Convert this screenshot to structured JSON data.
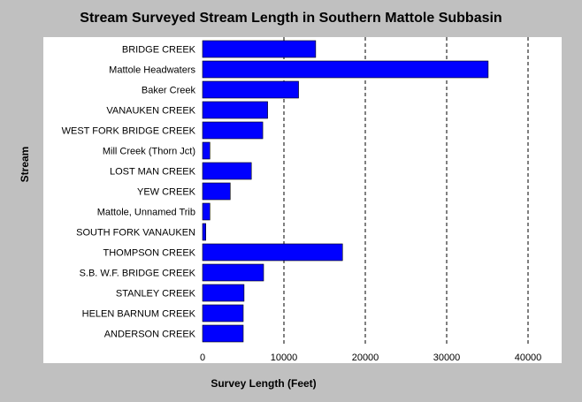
{
  "colors": {
    "background": "#c0c0c0",
    "plot_background": "#ffffff",
    "bar": "#0000ff",
    "grid": "#000000"
  },
  "chart_data": {
    "type": "bar",
    "orientation": "horizontal",
    "title": "Stream Surveyed Stream Length in Southern Mattole Subbasin",
    "xlabel": "Survey Length (Feet)",
    "ylabel": "Stream",
    "xlim": [
      0,
      40000
    ],
    "xticks": [
      0,
      10000,
      20000,
      30000,
      40000
    ],
    "grid": "vertical dashed",
    "categories": [
      "BRIDGE CREEK",
      "Mattole Headwaters",
      "Baker Creek",
      "VANAUKEN CREEK",
      "WEST FORK BRIDGE CREEK",
      "Mill Creek (Thorn Jct)",
      "LOST MAN CREEK",
      "YEW CREEK",
      "Mattole, Unnamed Trib",
      "SOUTH FORK VANAUKEN",
      "THOMPSON CREEK",
      "S.B. W.F. BRIDGE CREEK",
      "STANLEY CREEK",
      "HELEN BARNUM CREEK",
      "ANDERSON CREEK"
    ],
    "values": [
      13900,
      35100,
      11800,
      8000,
      7400,
      900,
      6000,
      3400,
      900,
      400,
      17200,
      7500,
      5100,
      5000,
      5000
    ]
  }
}
